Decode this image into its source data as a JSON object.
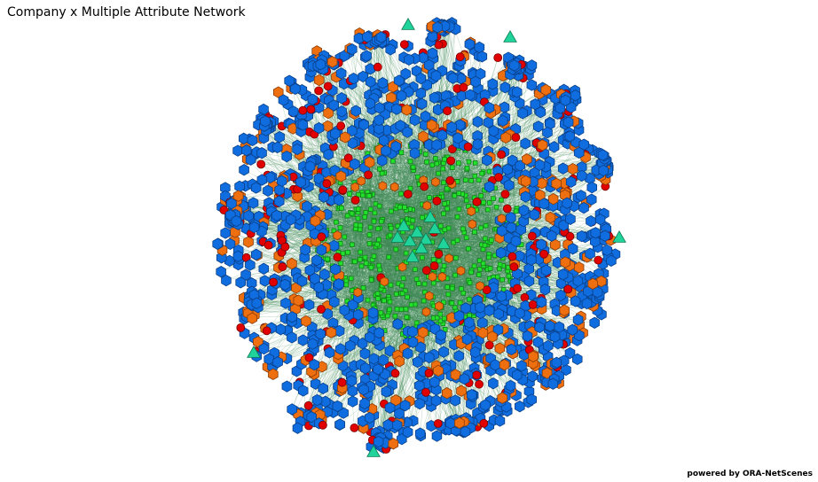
{
  "header": {
    "title": "Company x Multiple Attribute Network"
  },
  "footer": {
    "credit": "powered by ORA-NetScenes"
  },
  "network": {
    "node_types": [
      {
        "shape": "hexagon",
        "fill": "#0f6de0",
        "stroke": "#0a3f86",
        "icon": "blue-hexagon"
      },
      {
        "shape": "hexagon",
        "fill": "#ee6f10",
        "stroke": "#8a3c05",
        "icon": "orange-hexagon"
      },
      {
        "shape": "circle",
        "fill": "#e00000",
        "stroke": "#7a0000",
        "icon": "red-circle"
      },
      {
        "shape": "square",
        "fill": "#22e02c",
        "stroke": "#118018",
        "icon": "green-square"
      },
      {
        "shape": "triangle",
        "fill": "#20d39a",
        "stroke": "#0b7a55",
        "icon": "teal-triangle"
      }
    ],
    "edge_color": "#3f8a55"
  }
}
